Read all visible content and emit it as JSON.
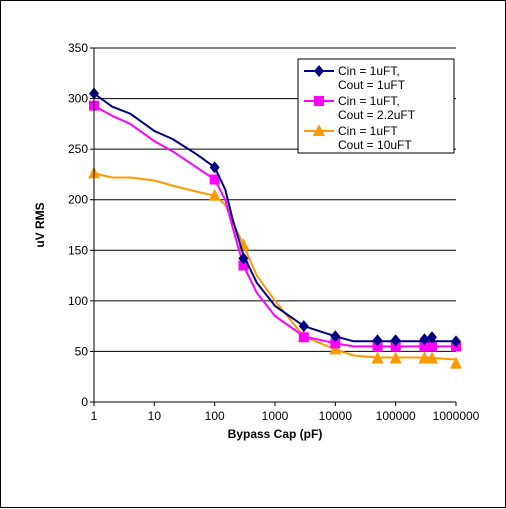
{
  "chart_data": {
    "type": "line",
    "title": "",
    "xlabel": "Bypass Cap (pF)",
    "ylabel": "uV RMS",
    "x_scale": "log",
    "xlim": [
      1,
      1000000
    ],
    "ylim": [
      0,
      350
    ],
    "x_ticks": [
      "1",
      "10",
      "100",
      "1000",
      "10000",
      "100000",
      "1000000"
    ],
    "y_ticks": [
      "0",
      "50",
      "100",
      "150",
      "200",
      "250",
      "300",
      "350"
    ],
    "grid": "horizontal",
    "legend_position": "top-right",
    "series": [
      {
        "name_lines": [
          "Cin = 1uFT,",
          "Cout = 1uFT"
        ],
        "color": "#000080",
        "marker": "diamond",
        "curve": [
          [
            1,
            305
          ],
          [
            2,
            292
          ],
          [
            4,
            285
          ],
          [
            10,
            268
          ],
          [
            20,
            260
          ],
          [
            50,
            245
          ],
          [
            100,
            232
          ],
          [
            150,
            210
          ],
          [
            200,
            180
          ],
          [
            300,
            145
          ],
          [
            500,
            118
          ],
          [
            1000,
            95
          ],
          [
            3000,
            75
          ],
          [
            10000,
            65
          ],
          [
            20000,
            60
          ],
          [
            50000,
            60
          ],
          [
            100000,
            60
          ],
          [
            300000,
            60
          ],
          [
            1000000,
            60
          ]
        ],
        "markers": [
          [
            1,
            305
          ],
          [
            100,
            232
          ],
          [
            300,
            142
          ],
          [
            3000,
            75
          ],
          [
            10000,
            65
          ],
          [
            50000,
            61
          ],
          [
            100000,
            61
          ],
          [
            300000,
            62
          ],
          [
            400000,
            64
          ],
          [
            1000000,
            60
          ]
        ]
      },
      {
        "name_lines": [
          "Cin = 1uFT,",
          "Cout = 2.2uFT"
        ],
        "color": "#ff00ff",
        "marker": "square",
        "curve": [
          [
            1,
            293
          ],
          [
            2,
            283
          ],
          [
            4,
            275
          ],
          [
            10,
            258
          ],
          [
            20,
            248
          ],
          [
            50,
            232
          ],
          [
            100,
            220
          ],
          [
            150,
            200
          ],
          [
            200,
            172
          ],
          [
            300,
            135
          ],
          [
            500,
            108
          ],
          [
            1000,
            85
          ],
          [
            3000,
            65
          ],
          [
            10000,
            58
          ],
          [
            20000,
            55
          ],
          [
            50000,
            55
          ],
          [
            100000,
            55
          ],
          [
            300000,
            55
          ],
          [
            1000000,
            55
          ]
        ],
        "markers": [
          [
            1,
            293
          ],
          [
            100,
            220
          ],
          [
            300,
            135
          ],
          [
            3000,
            64
          ],
          [
            10000,
            58
          ],
          [
            50000,
            55
          ],
          [
            100000,
            55
          ],
          [
            300000,
            55
          ],
          [
            400000,
            55
          ],
          [
            1000000,
            55
          ]
        ]
      },
      {
        "name_lines": [
          "Cin = 1uFT",
          "Cout = 10uFT"
        ],
        "color": "#ff9900",
        "marker": "triangle",
        "curve": [
          [
            1,
            226
          ],
          [
            2,
            222
          ],
          [
            4,
            222
          ],
          [
            10,
            219
          ],
          [
            20,
            214
          ],
          [
            50,
            208
          ],
          [
            100,
            204
          ],
          [
            150,
            195
          ],
          [
            200,
            178
          ],
          [
            300,
            155
          ],
          [
            500,
            125
          ],
          [
            1000,
            100
          ],
          [
            3000,
            65
          ],
          [
            10000,
            52
          ],
          [
            20000,
            46
          ],
          [
            50000,
            44
          ],
          [
            100000,
            44
          ],
          [
            300000,
            44
          ],
          [
            1000000,
            42
          ]
        ],
        "markers": [
          [
            1,
            226
          ],
          [
            100,
            204
          ],
          [
            300,
            155
          ],
          [
            3000,
            64
          ],
          [
            10000,
            52
          ],
          [
            50000,
            43
          ],
          [
            100000,
            43
          ],
          [
            300000,
            43
          ],
          [
            400000,
            43
          ],
          [
            1000000,
            38
          ]
        ]
      }
    ]
  }
}
